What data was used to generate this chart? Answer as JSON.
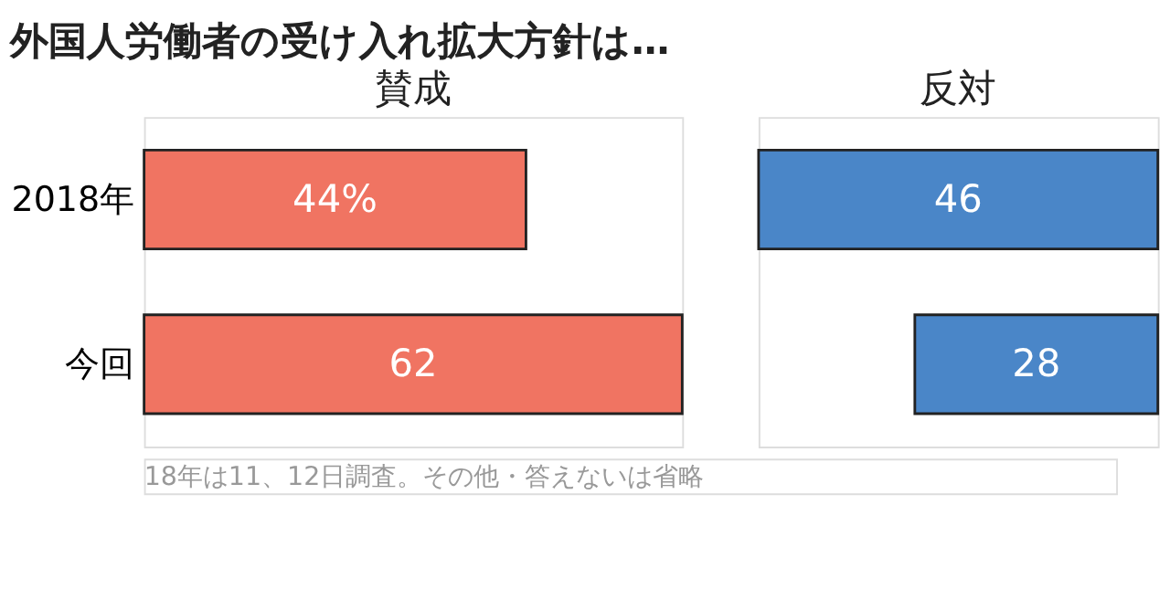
{
  "chart_data": [
    {
      "type": "bar",
      "title": "外国人労働者の受け入れ拡大方針は…",
      "subtitle": "賛成",
      "orientation": "horizontal",
      "categories": [
        "2018年",
        "今回"
      ],
      "values": [
        44,
        62
      ],
      "value_labels": [
        "44%",
        "62"
      ],
      "color": "#f07462",
      "xlim": [
        0,
        62
      ],
      "tick_labels": "y"
    },
    {
      "type": "bar",
      "subtitle": "反対",
      "orientation": "horizontal",
      "categories": [
        null,
        null
      ],
      "values": [
        46,
        28
      ],
      "value_labels": [
        "46",
        "28"
      ],
      "color": "#4a86c8",
      "xlim": [
        46,
        0
      ],
      "tick_labels": false,
      "annotations": [
        "18年は11、12日調査。その他・答えないは省略"
      ]
    }
  ]
}
